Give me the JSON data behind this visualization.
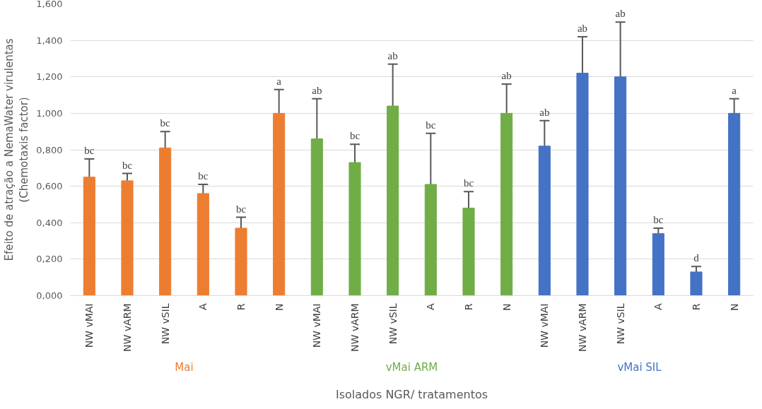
{
  "chart_data": {
    "type": "bar",
    "xlabel": "Isolados NGR/ tratamentos",
    "ylabel": "Efeito de atração a NemaWater virulentas\n(Chemotaxis factor)",
    "categories": [
      "NW vMAI",
      "NW vARM",
      "NW vSIL",
      "A",
      "R",
      "N",
      "NW vMAI",
      "NW vARM",
      "NW vSIL",
      "A",
      "R",
      "N",
      "NW vMAI",
      "NW vARM",
      "NW vSIL",
      "A",
      "R",
      "N"
    ],
    "series": [
      {
        "name": "Mai",
        "color": "#ed7d31",
        "values": [
          0.65,
          0.63,
          0.81,
          0.56,
          0.37,
          1.0,
          null,
          null,
          null,
          null,
          null,
          null,
          null,
          null,
          null,
          null,
          null,
          null
        ],
        "errors": [
          0.1,
          0.04,
          0.09,
          0.05,
          0.06,
          0.13,
          null,
          null,
          null,
          null,
          null,
          null,
          null,
          null,
          null,
          null,
          null,
          null
        ]
      },
      {
        "name": "vMai ARM",
        "color": "#70ad47",
        "values": [
          null,
          null,
          null,
          null,
          null,
          null,
          0.86,
          0.73,
          1.04,
          0.61,
          0.48,
          1.0,
          null,
          null,
          null,
          null,
          null,
          null
        ],
        "errors": [
          null,
          null,
          null,
          null,
          null,
          null,
          0.22,
          0.1,
          0.23,
          0.28,
          0.09,
          0.16,
          null,
          null,
          null,
          null,
          null,
          null
        ]
      },
      {
        "name": "vMai SIL",
        "color": "#4472c4",
        "values": [
          null,
          null,
          null,
          null,
          null,
          null,
          null,
          null,
          null,
          null,
          null,
          null,
          0.82,
          1.22,
          1.2,
          0.34,
          0.13,
          1.0
        ],
        "errors": [
          null,
          null,
          null,
          null,
          null,
          null,
          null,
          null,
          null,
          null,
          null,
          null,
          0.14,
          0.2,
          0.3,
          0.03,
          0.03,
          0.08
        ]
      }
    ],
    "annotations": [
      "bc",
      "bc",
      "bc",
      "bc",
      "bc",
      "a",
      "ab",
      "bc",
      "ab",
      "bc",
      "bc",
      "ab",
      "ab",
      "ab",
      "ab",
      "bc",
      "d",
      "a"
    ],
    "ylim": [
      0,
      1.6
    ],
    "yticks": [
      {
        "value": 0,
        "label": "0,000"
      },
      {
        "value": 0.2,
        "label": "0,200"
      },
      {
        "value": 0.4,
        "label": "0,400"
      },
      {
        "value": 0.6,
        "label": "0,600"
      },
      {
        "value": 0.8,
        "label": "0,800"
      },
      {
        "value": 1.0,
        "label": "1,000"
      },
      {
        "value": 1.2,
        "label": "1,200"
      },
      {
        "value": 1.4,
        "label": "1,400"
      },
      {
        "value": 1.6,
        "label": "1,600"
      }
    ],
    "grid": "y"
  }
}
